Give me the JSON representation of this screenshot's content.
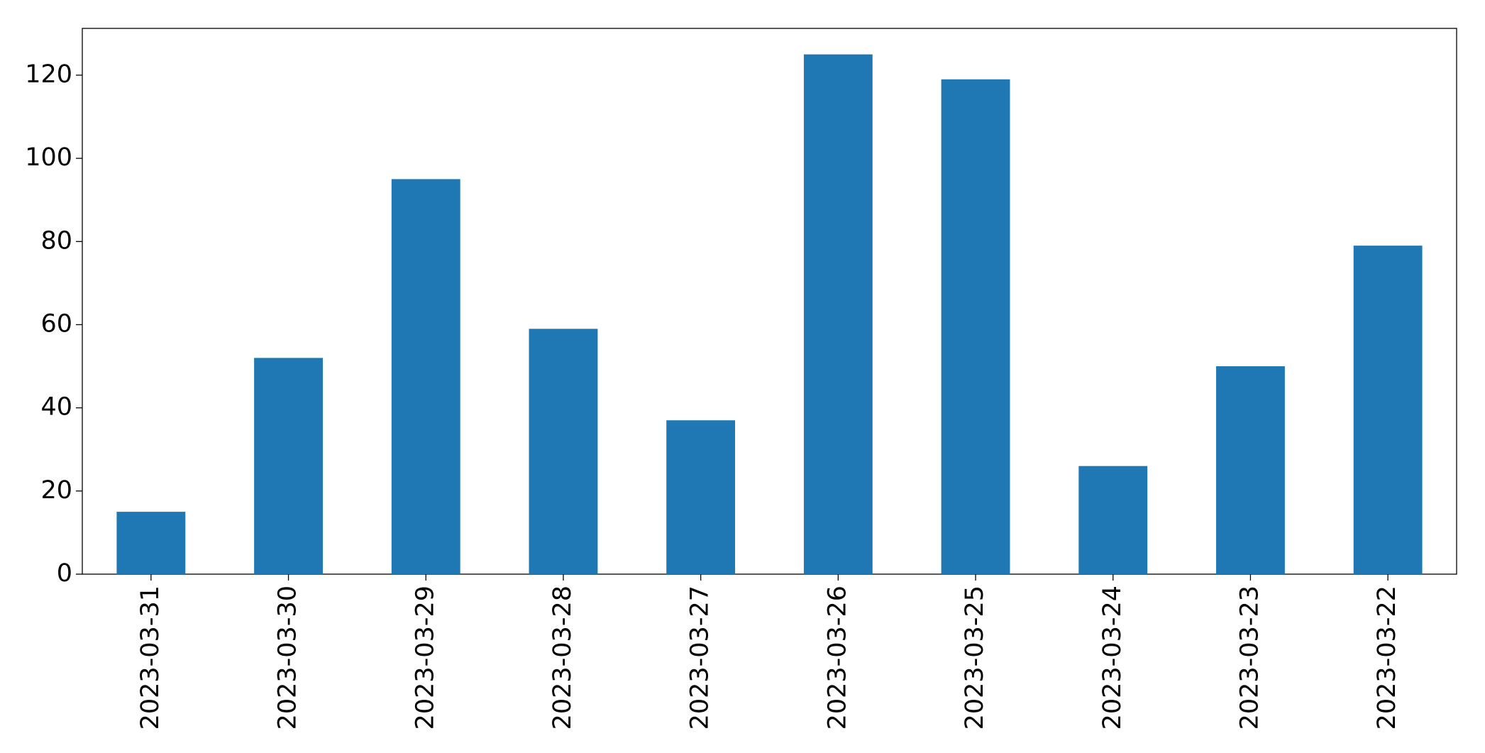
{
  "chart_data": {
    "type": "bar",
    "categories": [
      "2023-03-31",
      "2023-03-30",
      "2023-03-29",
      "2023-03-28",
      "2023-03-27",
      "2023-03-26",
      "2023-03-25",
      "2023-03-24",
      "2023-03-23",
      "2023-03-22"
    ],
    "values": [
      15,
      52,
      95,
      59,
      37,
      125,
      119,
      26,
      50,
      79
    ],
    "color": "#1f77b4",
    "ylim": [
      0,
      131.25
    ],
    "yticks": [
      0,
      20,
      40,
      60,
      80,
      100,
      120
    ],
    "grid": false
  }
}
